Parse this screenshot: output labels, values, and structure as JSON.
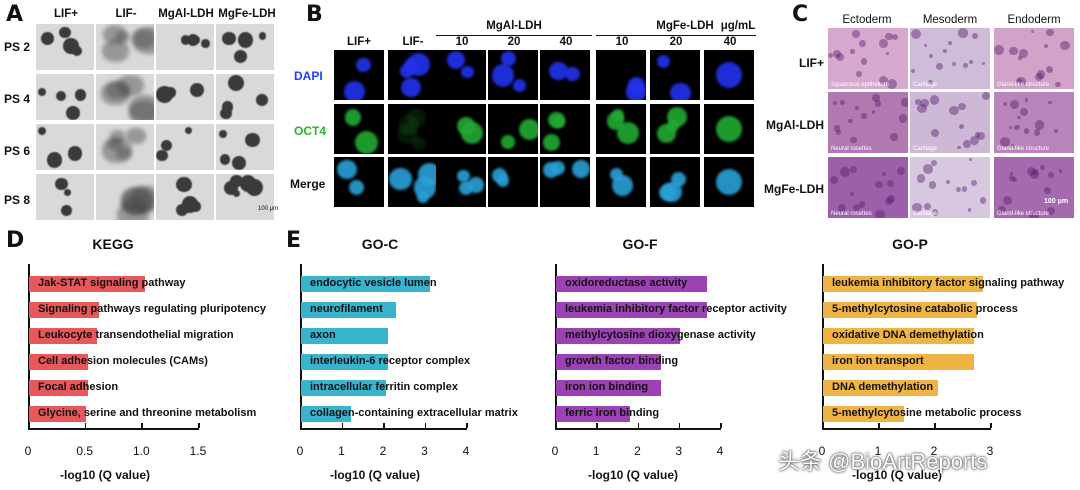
{
  "panelA": {
    "label": "A",
    "columns": [
      "LIF+",
      "LIF-",
      "MgAl-LDH",
      "MgFe-LDH"
    ],
    "rows": [
      "PS 2",
      "PS 4",
      "PS 6",
      "PS 8"
    ],
    "scale": "100 μm"
  },
  "panelB": {
    "label": "B",
    "col_single": [
      "LIF+",
      "LIF-"
    ],
    "group1": {
      "title": "MgAl-LDH",
      "doses": [
        "10",
        "20",
        "40"
      ]
    },
    "group2": {
      "title": "MgFe-LDH",
      "doses": [
        "10",
        "20",
        "40"
      ]
    },
    "unit": "μg/mL",
    "rows": [
      "DAPI",
      "OCT4",
      "Merge"
    ],
    "row_colors": [
      "#1e3cff",
      "#22cc22",
      "#111111"
    ]
  },
  "panelC": {
    "label": "C",
    "columns": [
      "Ectoderm",
      "Mesoderm",
      "Endoderm"
    ],
    "rows": [
      "LIF+",
      "MgAl-LDH",
      "MgFe-LDH"
    ],
    "captions": [
      [
        "Squamous epithelium",
        "Cartilage",
        "Gland-like structure"
      ],
      [
        "Neural rosettes",
        "Cartilage",
        "Gland-like structure"
      ],
      [
        "Neural rosettes",
        "Cartilage",
        "Gland-like structure"
      ]
    ],
    "scale": "100 μm"
  },
  "panelD": {
    "label": "D",
    "title": "KEGG",
    "color": "#e8575a",
    "xticks": [
      "0",
      "0.5",
      "1.0",
      "1.5"
    ],
    "xlabel": "-log10 (Q value)"
  },
  "panelE": {
    "label": "E",
    "xlabel": "-log10 (Q value)"
  },
  "chart_data": [
    {
      "type": "bar",
      "orientation": "horizontal",
      "title": "KEGG",
      "xlabel": "-log10 (Q value)",
      "xlim": [
        0,
        1.5
      ],
      "categories": [
        "Jak-STAT signaling pathway",
        "Signaling pathways regulating pluripotency",
        "Leukocyte transendothelial migration",
        "Cell adhesion molecules (CAMs)",
        "Focal adhesion",
        "Glycine, serine and threonine metabolism"
      ],
      "values": [
        1.02,
        0.62,
        0.6,
        0.52,
        0.52,
        0.5
      ]
    },
    {
      "type": "bar",
      "orientation": "horizontal",
      "title": "GO-C",
      "xlabel": "-log10 (Q value)",
      "xlim": [
        0,
        4
      ],
      "categories": [
        "endocytic vesicle lumen",
        "neurofilament",
        "axon",
        "interleukin-6 receptor complex",
        "intracellular ferritin complex",
        "collagen-containing extracellular matrix"
      ],
      "values": [
        3.1,
        2.3,
        2.1,
        2.1,
        2.05,
        1.2
      ]
    },
    {
      "type": "bar",
      "orientation": "horizontal",
      "title": "GO-F",
      "xlabel": "-log10 (Q value)",
      "xlim": [
        0,
        4
      ],
      "categories": [
        "oxidoreductase activity",
        "leukemia inhibitory factor receptor activity",
        "methylcytosine dioxygenase activity",
        "growth factor binding",
        "iron ion binding",
        "ferric iron binding"
      ],
      "values": [
        3.65,
        3.65,
        3.0,
        2.55,
        2.55,
        1.8
      ]
    },
    {
      "type": "bar",
      "orientation": "horizontal",
      "title": "GO-P",
      "xlabel": "-log10 (Q value)",
      "xlim": [
        0,
        3
      ],
      "categories": [
        "leukemia inhibitory factor signaling pathway",
        "5-methylcytosine catabolic process",
        "oxidative DNA demethylation",
        "iron ion transport",
        "DNA demethylation",
        "5-methylcytosine metabolic process"
      ],
      "values": [
        2.85,
        2.75,
        2.7,
        2.7,
        2.05,
        1.45
      ]
    }
  ],
  "colors": {
    "GO-C": "#38b4cf",
    "GO-F": "#9c42b5",
    "GO-P": "#f0b444"
  },
  "watermark": "头条 @BioArtReports"
}
